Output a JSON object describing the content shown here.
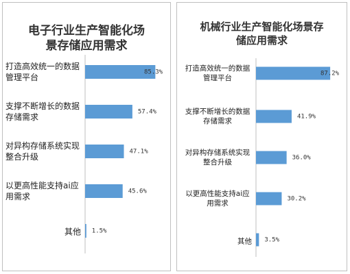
{
  "chart_data": [
    {
      "type": "bar",
      "orientation": "horizontal",
      "title": "电子行业生产智能化场景存储应用需求",
      "categories": [
        "打造高效统一的数据管理平台",
        "支撑不断增长的数据存储需求",
        "对异构存储系统实现整合升级",
        "以更高性能支持ai应用需求",
        "其他"
      ],
      "values": [
        85.3,
        57.4,
        47.1,
        45.6,
        1.5
      ],
      "value_labels": [
        "85.3%",
        "57.4%",
        "47.1%",
        "45.6%",
        "1.5%"
      ],
      "color": "#5b9bd5"
    },
    {
      "type": "bar",
      "orientation": "horizontal",
      "title": "机械行业生产智能化场景存储应用需求",
      "categories": [
        "打造高效统一的数据管理平台",
        "支撑不断增长的数据存储需求",
        "对异构存储系统实现整合升级",
        "以更高性能支持ai应用需求",
        "其他"
      ],
      "values": [
        87.2,
        41.9,
        36.0,
        30.2,
        3.5
      ],
      "value_labels": [
        "87.2%",
        "41.9%",
        "36.0%",
        "30.2%",
        "3.5%"
      ],
      "color": "#5b9bd5"
    }
  ]
}
